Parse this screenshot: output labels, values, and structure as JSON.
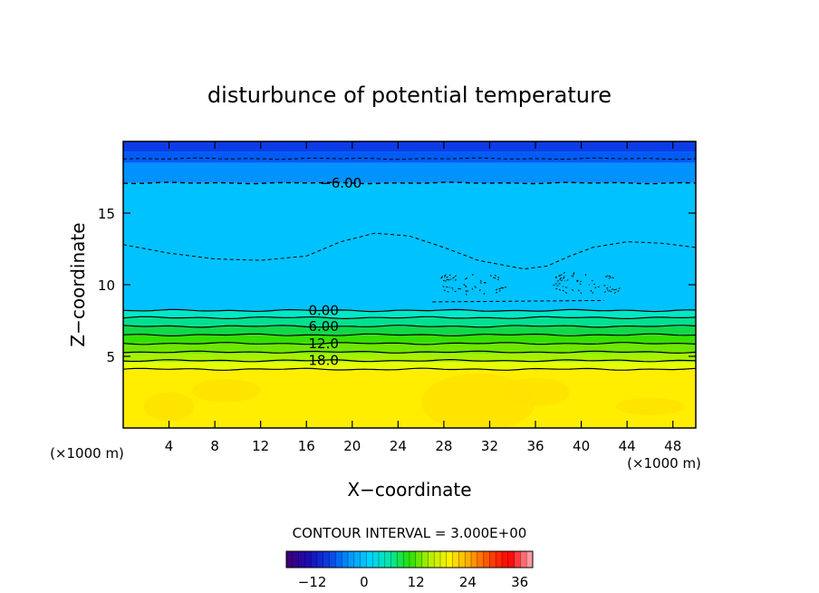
{
  "chart_data": {
    "type": "heatmap",
    "title": "disturbunce of potential temperature",
    "xlabel": "X−coordinate",
    "ylabel": "Z−coordinate",
    "x_unit_label": "(×1000 m)",
    "z_unit_label": "(×1000 m)",
    "xlim": [
      0,
      50
    ],
    "ylim": [
      0,
      20
    ],
    "x_ticks": [
      4,
      8,
      12,
      16,
      20,
      24,
      28,
      32,
      36,
      40,
      44,
      48
    ],
    "y_ticks": [
      5,
      10,
      15
    ],
    "contour_interval_text": "CONTOUR INTERVAL = 3.000E+00",
    "contour_labels": [
      {
        "text": "−6.00",
        "x": 19,
        "z": 17.1
      },
      {
        "text": "0.00",
        "x": 17.5,
        "z": 8.2
      },
      {
        "text": "6.00",
        "x": 17.5,
        "z": 7.1
      },
      {
        "text": "12.0",
        "x": 17.5,
        "z": 5.9
      },
      {
        "text": "18.0",
        "x": 17.5,
        "z": 4.7
      }
    ],
    "layers": [
      {
        "z0": 0.0,
        "z1": 4.1,
        "color": "#ffee00"
      },
      {
        "z0": 4.1,
        "z1": 4.6,
        "color": "#e6ff00"
      },
      {
        "z0": 4.6,
        "z1": 5.2,
        "color": "#a9f000"
      },
      {
        "z0": 5.2,
        "z1": 5.9,
        "color": "#6fe600"
      },
      {
        "z0": 5.9,
        "z1": 6.5,
        "color": "#35e000"
      },
      {
        "z0": 6.5,
        "z1": 7.1,
        "color": "#10d84a"
      },
      {
        "z0": 7.1,
        "z1": 7.7,
        "color": "#00e090"
      },
      {
        "z0": 7.7,
        "z1": 8.2,
        "color": "#00e8c8"
      },
      {
        "z0": 8.2,
        "z1": 17.1,
        "color": "#00c2ff"
      },
      {
        "z0": 17.1,
        "z1": 18.5,
        "color": "#0092ff"
      },
      {
        "z0": 18.5,
        "z1": 19.3,
        "color": "#005cf4"
      },
      {
        "z0": 19.3,
        "z1": 20.0,
        "color": "#0b3ce8"
      }
    ],
    "colorbar": {
      "min": -18,
      "max": 39,
      "ticks": [
        -12,
        0,
        12,
        24,
        36
      ],
      "stops": [
        "#3a007a",
        "#1a0cb8",
        "#0a40e6",
        "#0096ff",
        "#00d2ff",
        "#00e8a8",
        "#28e000",
        "#b4f000",
        "#fff000",
        "#ffa800",
        "#ff4800",
        "#ff0000",
        "#ff9aa0"
      ]
    }
  }
}
